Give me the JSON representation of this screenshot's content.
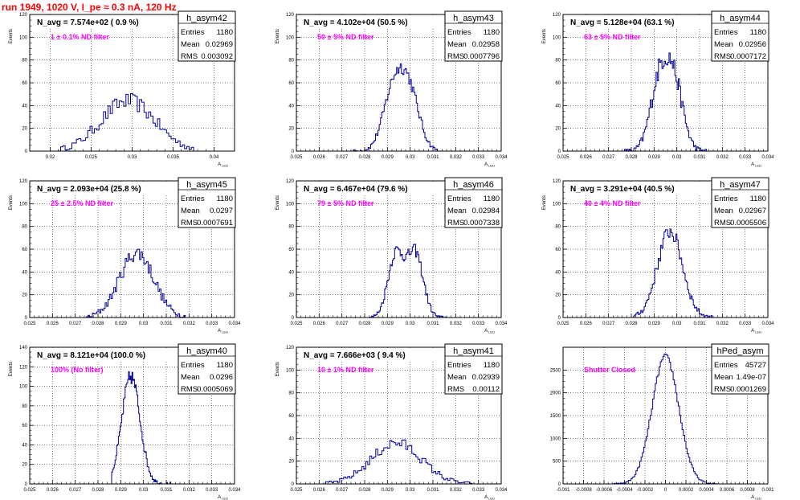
{
  "page": {
    "title": "run 1949,  1020 V, I_pe ≈ 0.3 nA, 120 Hz",
    "colors": {
      "title": "#ff0000",
      "hist": "#000099",
      "annotation": "#ff00ff",
      "grid": "#000000"
    }
  },
  "chart_data": [
    {
      "type": "bar",
      "style": "step-histogram",
      "name": "h_asym42",
      "navg": "N_avg = 7.574e+02 ( 0.9 %)",
      "annotation": "1 ± 0.1% ND filter",
      "stats": {
        "entries": "1180",
        "mean": "0.02969",
        "rms": "0.003092"
      },
      "xlabel": "A_LED",
      "ylabel": "Events",
      "xlim": [
        0.0175,
        0.0425
      ],
      "ylim": [
        0,
        120
      ],
      "xticks": [
        0.02,
        0.025,
        0.03,
        0.035,
        0.04
      ],
      "xtick_labels": [
        "0.02",
        "0.025",
        "0.03",
        "0.035",
        "0.04"
      ],
      "yticks": [
        0,
        20,
        40,
        60,
        80,
        100,
        120
      ],
      "curve": {
        "mode": "single",
        "mean": 0.0295,
        "sigma": 0.0033,
        "peak": 44,
        "noise": 7,
        "range": [
          0.021,
          0.0375
        ],
        "nbins": 60
      }
    },
    {
      "type": "bar",
      "style": "step-histogram",
      "name": "h_asym43",
      "navg": "N_avg = 4.102e+04 (50.5 %)",
      "annotation": "50 ± 5% ND filter",
      "stats": {
        "entries": "1180",
        "mean": "0.02958",
        "rms": "0.0007796"
      },
      "xlabel": "A_LED",
      "ylabel": "Events",
      "xlim": [
        0.025,
        0.034
      ],
      "ylim": [
        0,
        120
      ],
      "xticks": [
        0.025,
        0.026,
        0.027,
        0.028,
        0.029,
        0.03,
        0.031,
        0.032,
        0.033,
        0.034
      ],
      "xtick_labels": [
        "0.025",
        "0.026",
        "0.027",
        "0.028",
        "0.029",
        "0.03",
        "0.031",
        "0.032",
        "0.033",
        "0.034"
      ],
      "yticks": [
        0,
        20,
        40,
        60,
        80,
        100,
        120
      ],
      "curve": {
        "mode": "double",
        "mean": 0.0296,
        "sep": 0.0007,
        "sigma": 0.00045,
        "peak": 50,
        "noise": 5,
        "range": [
          0.0275,
          0.0313
        ],
        "nbins": 70
      }
    },
    {
      "type": "bar",
      "style": "step-histogram",
      "name": "h_asym44",
      "navg": "N_avg = 5.128e+04 (63.1 %)",
      "annotation": "63 ± 5% ND filter",
      "stats": {
        "entries": "1180",
        "mean": "0.02956",
        "rms": "0.0007172"
      },
      "xlabel": "A_LED",
      "ylabel": "Events",
      "xlim": [
        0.025,
        0.034
      ],
      "ylim": [
        0,
        120
      ],
      "xticks": [
        0.025,
        0.026,
        0.027,
        0.028,
        0.029,
        0.03,
        0.031,
        0.032,
        0.033,
        0.034
      ],
      "xtick_labels": [
        "0.025",
        "0.026",
        "0.027",
        "0.028",
        "0.029",
        "0.03",
        "0.031",
        "0.032",
        "0.033",
        "0.034"
      ],
      "yticks": [
        0,
        20,
        40,
        60,
        80,
        100,
        120
      ],
      "curve": {
        "mode": "double",
        "mean": 0.02955,
        "sep": 0.00065,
        "sigma": 0.0004,
        "peak": 58,
        "noise": 8,
        "range": [
          0.0277,
          0.0313
        ],
        "nbins": 70
      }
    },
    {
      "type": "bar",
      "style": "step-histogram",
      "name": "h_asym45",
      "navg": "N_avg = 2.093e+04 (25.8 %)",
      "annotation": "25 ± 2.5% ND filter",
      "stats": {
        "entries": "1180",
        "mean": "0.0297",
        "rms": "0.0007691"
      },
      "xlabel": "A_LED",
      "ylabel": "Events",
      "xlim": [
        0.025,
        0.034
      ],
      "ylim": [
        0,
        120
      ],
      "xticks": [
        0.025,
        0.026,
        0.027,
        0.028,
        0.029,
        0.03,
        0.031,
        0.032,
        0.033,
        0.034
      ],
      "xtick_labels": [
        "0.025",
        "0.026",
        "0.027",
        "0.028",
        "0.029",
        "0.03",
        "0.031",
        "0.032",
        "0.033",
        "0.034"
      ],
      "yticks": [
        0,
        20,
        40,
        60,
        80,
        100,
        120
      ],
      "curve": {
        "mode": "single",
        "mean": 0.0297,
        "sigma": 0.00075,
        "peak": 57,
        "noise": 7,
        "range": [
          0.0275,
          0.0319
        ],
        "nbins": 70
      }
    },
    {
      "type": "bar",
      "style": "step-histogram",
      "name": "h_asym46",
      "navg": "N_avg = 6.467e+04 (79.6 %)",
      "annotation": "79 ± 5% ND filter",
      "stats": {
        "entries": "1180",
        "mean": "0.02984",
        "rms": "0.0007338"
      },
      "xlabel": "A_LED",
      "ylabel": "Events",
      "xlim": [
        0.025,
        0.034
      ],
      "ylim": [
        0,
        120
      ],
      "xticks": [
        0.025,
        0.026,
        0.027,
        0.028,
        0.029,
        0.03,
        0.031,
        0.032,
        0.033,
        0.034
      ],
      "xtick_labels": [
        "0.025",
        "0.026",
        "0.027",
        "0.028",
        "0.029",
        "0.03",
        "0.031",
        "0.032",
        "0.033",
        "0.034"
      ],
      "yticks": [
        0,
        20,
        40,
        60,
        80,
        100,
        120
      ],
      "curve": {
        "mode": "double",
        "mean": 0.0298,
        "sep": 0.00085,
        "sigma": 0.00035,
        "peak": 56,
        "noise": 5,
        "range": [
          0.0282,
          0.0316
        ],
        "nbins": 70
      }
    },
    {
      "type": "bar",
      "style": "step-histogram",
      "name": "h_asym47",
      "navg": "N_avg = 3.291e+04 (40.5 %)",
      "annotation": "40 ± 4% ND filter",
      "stats": {
        "entries": "1180",
        "mean": "0.02967",
        "rms": "0.0005506"
      },
      "xlabel": "A_LED",
      "ylabel": "Events",
      "xlim": [
        0.025,
        0.034
      ],
      "ylim": [
        0,
        120
      ],
      "xticks": [
        0.025,
        0.026,
        0.027,
        0.028,
        0.029,
        0.03,
        0.031,
        0.032,
        0.033,
        0.034
      ],
      "xtick_labels": [
        "0.025",
        "0.026",
        "0.027",
        "0.028",
        "0.029",
        "0.03",
        "0.031",
        "0.032",
        "0.033",
        "0.034"
      ],
      "yticks": [
        0,
        20,
        40,
        60,
        80,
        100,
        120
      ],
      "curve": {
        "mode": "single",
        "mean": 0.0297,
        "sigma": 0.00055,
        "peak": 76,
        "noise": 7,
        "range": [
          0.028,
          0.0316
        ],
        "nbins": 70
      }
    },
    {
      "type": "bar",
      "style": "step-histogram",
      "name": "h_asym40",
      "navg": "N_avg = 8.121e+04 (100.0 %)",
      "annotation": "100% (No filter)",
      "stats": {
        "entries": "1180",
        "mean": "0.0296",
        "rms": "0.0005069"
      },
      "xlabel": "A_LED",
      "ylabel": "Events",
      "xlim": [
        0.025,
        0.034
      ],
      "ylim": [
        0,
        140
      ],
      "xticks": [
        0.025,
        0.026,
        0.027,
        0.028,
        0.029,
        0.03,
        0.031,
        0.032,
        0.033,
        0.034
      ],
      "xtick_labels": [
        "0.025",
        "0.026",
        "0.027",
        "0.028",
        "0.029",
        "0.03",
        "0.031",
        "0.032",
        "0.033",
        "0.034"
      ],
      "yticks": [
        0,
        20,
        40,
        60,
        80,
        100,
        120,
        140
      ],
      "curve": {
        "mode": "single",
        "mean": 0.02945,
        "sigma": 0.0004,
        "peak": 110,
        "noise": 8,
        "range": [
          0.0286,
          0.0312
        ],
        "nbins": 70
      }
    },
    {
      "type": "bar",
      "style": "step-histogram",
      "name": "h_asym41",
      "navg": "N_avg = 7.666e+03 ( 9.4 %)",
      "annotation": "10 ± 1% ND filter",
      "stats": {
        "entries": "1180",
        "mean": "0.02939",
        "rms": "0.00112"
      },
      "xlabel": "A_LED",
      "ylabel": "Events",
      "xlim": [
        0.025,
        0.034
      ],
      "ylim": [
        0,
        120
      ],
      "xticks": [
        0.025,
        0.026,
        0.027,
        0.028,
        0.029,
        0.03,
        0.031,
        0.032,
        0.033,
        0.034
      ],
      "xtick_labels": [
        "0.025",
        "0.026",
        "0.027",
        "0.028",
        "0.029",
        "0.03",
        "0.031",
        "0.032",
        "0.033",
        "0.034"
      ],
      "yticks": [
        0,
        20,
        40,
        60,
        80,
        100,
        120
      ],
      "curve": {
        "mode": "single",
        "mean": 0.0294,
        "sigma": 0.0011,
        "peak": 36,
        "noise": 5,
        "range": [
          0.0262,
          0.0328
        ],
        "nbins": 75
      }
    },
    {
      "type": "bar",
      "style": "step-histogram",
      "name": "hPed_asym",
      "navg": "",
      "annotation": "Shutter Closed",
      "stats": {
        "entries": "45727",
        "mean": "1.49e-07",
        "rms": "0.0001269"
      },
      "xlabel": "A_LED",
      "ylabel": "",
      "xlim": [
        -0.001,
        0.001
      ],
      "ylim": [
        0,
        3000
      ],
      "xticks": [
        -0.001,
        -0.0008,
        -0.0006,
        -0.0004,
        -0.0002,
        0,
        0.0002,
        0.0004,
        0.0006,
        0.0008,
        0.001
      ],
      "xtick_labels": [
        "-0.001",
        "-0.0008",
        "-0.0006",
        "-0.0004",
        "-0.0002",
        "0",
        "0.0002",
        "0.0004",
        "0.0006",
        "0.0008",
        "0.001"
      ],
      "yticks": [
        0,
        500,
        1000,
        1500,
        2000,
        2500
      ],
      "curve": {
        "mode": "single",
        "mean": 0.0,
        "sigma": 0.00013,
        "peak": 2800,
        "noise": 60,
        "range": [
          -0.0005,
          0.0005
        ],
        "nbins": 80
      }
    }
  ]
}
